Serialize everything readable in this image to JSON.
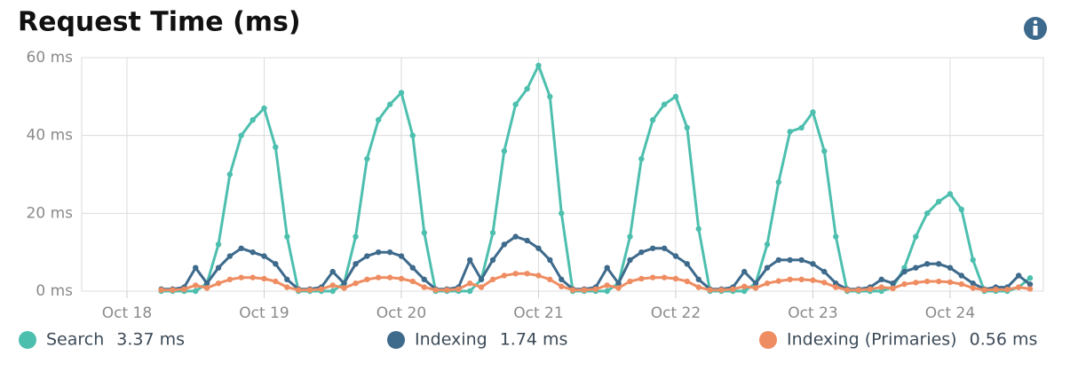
{
  "chart_data": {
    "type": "line",
    "title": "Request Time (ms)",
    "x": [
      18.25,
      18.333,
      18.417,
      18.5,
      18.583,
      18.667,
      18.75,
      18.833,
      18.917,
      19,
      19.083,
      19.167,
      19.25,
      19.333,
      19.417,
      19.5,
      19.583,
      19.667,
      19.75,
      19.833,
      19.917,
      20,
      20.083,
      20.167,
      20.25,
      20.333,
      20.417,
      20.5,
      20.583,
      20.667,
      20.75,
      20.833,
      20.917,
      21,
      21.083,
      21.167,
      21.25,
      21.333,
      21.417,
      21.5,
      21.583,
      21.667,
      21.75,
      21.833,
      21.917,
      22,
      22.083,
      22.167,
      22.25,
      22.333,
      22.417,
      22.5,
      22.583,
      22.667,
      22.75,
      22.833,
      22.917,
      23,
      23.083,
      23.167,
      23.25,
      23.333,
      23.417,
      23.5,
      23.583,
      23.667,
      23.75,
      23.833,
      23.917,
      24,
      24.083,
      24.167,
      24.25,
      24.333,
      24.417,
      24.5,
      24.583
    ],
    "series": [
      {
        "name": "Search",
        "color": "#4dbfae",
        "current": 3.37,
        "current_label": "3.37 ms",
        "values": [
          0,
          0,
          0,
          0,
          2,
          12,
          30,
          40,
          44,
          47,
          37,
          14,
          0,
          0,
          0,
          0,
          2,
          14,
          34,
          44,
          48,
          51,
          40,
          15,
          0,
          0,
          0,
          0,
          3,
          15,
          36,
          48,
          52,
          58,
          50,
          20,
          0,
          0,
          0,
          0,
          2,
          14,
          34,
          44,
          48,
          50,
          42,
          16,
          0,
          0,
          0,
          0,
          2,
          12,
          28,
          41,
          42,
          46,
          36,
          14,
          0,
          0,
          0,
          0,
          1,
          6,
          14,
          20,
          23,
          25,
          21,
          8,
          0,
          0,
          0,
          1,
          3.37
        ]
      },
      {
        "name": "Indexing",
        "color": "#3e6a8c",
        "current": 1.74,
        "current_label": "1.74 ms",
        "values": [
          0.5,
          0.5,
          1,
          6,
          2,
          6,
          9,
          11,
          10,
          9,
          7,
          3,
          0.5,
          0.5,
          1,
          5,
          2,
          7,
          9,
          10,
          10,
          9,
          6,
          3,
          0.5,
          0.5,
          1,
          8,
          3,
          8,
          12,
          14,
          13,
          11,
          8,
          3,
          0.5,
          0.5,
          1,
          6,
          2,
          8,
          10,
          11,
          11,
          9,
          7,
          3,
          0.5,
          0.5,
          1,
          5,
          2,
          6,
          8,
          8,
          8,
          7,
          5,
          2,
          0.5,
          0.5,
          1,
          3,
          2,
          5,
          6,
          7,
          7,
          6,
          4,
          2,
          0.5,
          1,
          1,
          4,
          1.74
        ]
      },
      {
        "name": "Indexing (Primaries)",
        "color": "#ef8d62",
        "current": 0.56,
        "current_label": "0.56 ms",
        "values": [
          0.3,
          0.3,
          0.5,
          1.5,
          0.8,
          2,
          3,
          3.5,
          3.5,
          3.2,
          2.5,
          1,
          0.3,
          0.3,
          0.5,
          1.5,
          0.8,
          2,
          3,
          3.5,
          3.5,
          3.2,
          2.5,
          1,
          0.3,
          0.3,
          0.5,
          2,
          1,
          3,
          4,
          4.5,
          4.5,
          4,
          3,
          1.2,
          0.3,
          0.3,
          0.5,
          1.5,
          0.8,
          2.5,
          3.2,
          3.5,
          3.5,
          3.2,
          2.5,
          1,
          0.3,
          0.3,
          0.5,
          1.2,
          0.8,
          2,
          2.6,
          3,
          3,
          2.8,
          2.2,
          1,
          0.3,
          0.3,
          0.5,
          1,
          0.7,
          1.8,
          2.2,
          2.5,
          2.5,
          2.3,
          1.8,
          0.8,
          0.3,
          0.4,
          0.4,
          1,
          0.56
        ]
      }
    ],
    "xlim": [
      17.67,
      24.68
    ],
    "xticks": [
      {
        "value": 18,
        "label": "Oct 18"
      },
      {
        "value": 19,
        "label": "Oct 19"
      },
      {
        "value": 20,
        "label": "Oct 20"
      },
      {
        "value": 21,
        "label": "Oct 21"
      },
      {
        "value": 22,
        "label": "Oct 22"
      },
      {
        "value": 23,
        "label": "Oct 23"
      },
      {
        "value": 24,
        "label": "Oct 24"
      }
    ],
    "ylim": [
      0,
      60
    ],
    "yticks": [
      {
        "value": 0,
        "label": "0 ms"
      },
      {
        "value": 20,
        "label": "20 ms"
      },
      {
        "value": 40,
        "label": "40 ms"
      },
      {
        "value": 60,
        "label": "60 ms"
      }
    ],
    "grid": true
  }
}
